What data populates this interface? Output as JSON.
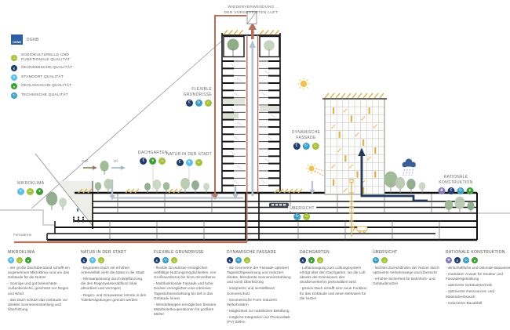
{
  "colors": {
    "pipe_brown": "#b3705a",
    "solar_yellow": "#dcb34f",
    "navy_arrow": "#24395e",
    "airflow_gray": "#b6c0d0",
    "dgnb_blue": "#2e5fa3",
    "sun_yellow": "#ecc257"
  },
  "categories": {
    "sozio": {
      "color": "#a4c139",
      "glyph": "☺"
    },
    "oekon": {
      "color": "#1f3c6d",
      "glyph": "€"
    },
    "standort": {
      "color": "#5bbde8",
      "glyph": "✕"
    },
    "oekolog": {
      "color": "#3f9e3a",
      "glyph": "♦"
    },
    "technisch": {
      "color": "#3d9fc4",
      "glyph": "↻"
    },
    "prozess": {
      "color": "#8579b5",
      "glyph": "✚"
    }
  },
  "legend": {
    "logo_text": "DGNB",
    "logo_label": "DGNB",
    "items": [
      {
        "category": "sozio",
        "label": "SOZIOKULTURELLE UND\nFUNKTIONALE QUALITÄT"
      },
      {
        "category": "oekon",
        "label": "ÖKONOMISCHE QUALITÄT"
      },
      {
        "category": "standort",
        "label": "STANDORT QUALITÄT"
      },
      {
        "category": "oekolog",
        "label": "ÖKOLOGISCHE QUALITÄT"
      },
      {
        "category": "technisch",
        "label": "TECHNISCHE QUALITÄT"
      }
    ]
  },
  "diagram_labels": {
    "top_vent": {
      "text": "WIEDERVERWENDUNG\nDER VORGEHEIZTEN LUFT"
    },
    "flexible": {
      "text": "FLEXIBLE\nGRUNDRISSE",
      "badges": [
        "oekon",
        "technisch",
        "sozio"
      ]
    },
    "dachgarten": {
      "text": "DACHGARTEN",
      "badges": [
        "oekon",
        "oekolog",
        "sozio"
      ]
    },
    "natur": {
      "text": "NATUR IN DER STADT",
      "badges": [
        "oekon",
        "standort",
        "sozio"
      ]
    },
    "mikroklima": {
      "text": "MIKROKLIMA",
      "badges": [
        "standort",
        "sozio",
        "oekolog"
      ]
    },
    "dynamisch": {
      "text": "DYNAMISCHE\nFASSADE",
      "badges": [
        "oekon",
        "technisch",
        "sozio"
      ]
    },
    "uebersicht": {
      "text": "ÜBERSICHT",
      "badges": [
        "technisch",
        "sozio"
      ]
    },
    "rational": {
      "text": "RATIONALE\nKONSTRUKTION",
      "badges": [
        "prozess",
        "oekon",
        "technisch",
        "oekolog"
      ]
    }
  },
  "annotations": {
    "fernwaerme": "Fernwärme",
    "co2": "CO²",
    "o2": "O²"
  },
  "columns": [
    {
      "title": "MIKROKLIMA",
      "badges": [
        "standort",
        "sozio",
        "oekolog"
      ],
      "items": [
        "- der große Dachüberstand schafft ein angenehmes Mikroklima rund um das Gebäude für die Nutzer",
        "- Sonnige und gut beleuchtete Außenbereiche, geschützt vor Regen und Wind",
        "- das Dach schützt das Gebäude vor direkter Sonneneinstrahlung und Überhitzung"
      ]
    },
    {
      "title": "NATUR IN DER STADT",
      "badges": [
        "oekon",
        "standort",
        "sozio"
      ],
      "items": [
        "- begrüntes Dach mit erhöhter Artenvielfalt zieht die Natur in die Stadt",
        "- Klimaanpassung durch Bepflanzung, die den Regenwasserabfluss lokal absorbiert und verzögert",
        "- Regen- und Grauwasser könnte in den Toilettenspülungen genutzt werden"
      ]
    },
    {
      "title": "FLEXIBLE GRUNDRISSE",
      "badges": [
        "oekon",
        "technisch",
        "sozio"
      ],
      "items": [
        "- flexible Grundrisse ermöglichen vielfältige Nutzungsmöglichkeiten, von Großraumbüros bis hinzu Einzelbüros",
        "- Multifunktionale Fassade und hohe Decken ermöglichen eine intensive Tageslichteinstrahlung bis tief in das Gebäude hinein",
        "- Wendeltreppen ermöglichen bessere Mitarbeiterkooperationen für größere Mieter"
      ]
    },
    {
      "title": "DYNAMISCHE FASSADE",
      "badges": [
        "oekon",
        "technisch",
        "sozio"
      ],
      "items": [
        "- die Geometrie der Fassade optimiert Tageslichtgewinnung und reduziert direkte, blendende Sonneneinstrahlung und somit Überhitzung",
        "- integrierter und verstellbarer Sonnenschutz",
        "- Geometrische Form reduziert Verkehrslärm",
        "- Möglichkeit zur natürlichen Belüftung",
        "- mögliche Integration von Photovoltaik (PV) Zellen"
      ]
    },
    {
      "title": "DACHGARTEN",
      "badges": [
        "oekon",
        "oekolog",
        "sozio"
      ],
      "items": [
        "- Luftansaugung zum Lüftungssystem erfolgt über den Dachgarten, wo die Luft abseits der Emissionen des Straßenverkehrs prekonditiert wird",
        "- grünes Dach schafft eine neue Funktion für das Gebäude und einen Mehrwert für die Nutzer"
      ]
    },
    {
      "title": "ÜBERSICHT",
      "badges": [
        "technisch",
        "sozio"
      ],
      "items": [
        "- leichtes Zurechtfinden der Nutzer durch optimierte Verkehrswege und Übersicht",
        "- erhöhte Sicherheit für Bahnhofs- und Gebäudenutzer"
      ]
    },
    {
      "title": "RATIONALE KONSTRUKTION",
      "badges": [
        "prozess",
        "oekon",
        "technisch",
        "oekolog"
      ],
      "items": [
        "- wirtschaftliche und rationale Bauweise",
        "- modularer Ansatz für Struktur und Fassadengestaltung",
        "- optimierte Gebäudetechnik",
        "- optimierter Ressourcen- und Materialverbrauch",
        "- reduzierter Bauabfall"
      ]
    }
  ]
}
